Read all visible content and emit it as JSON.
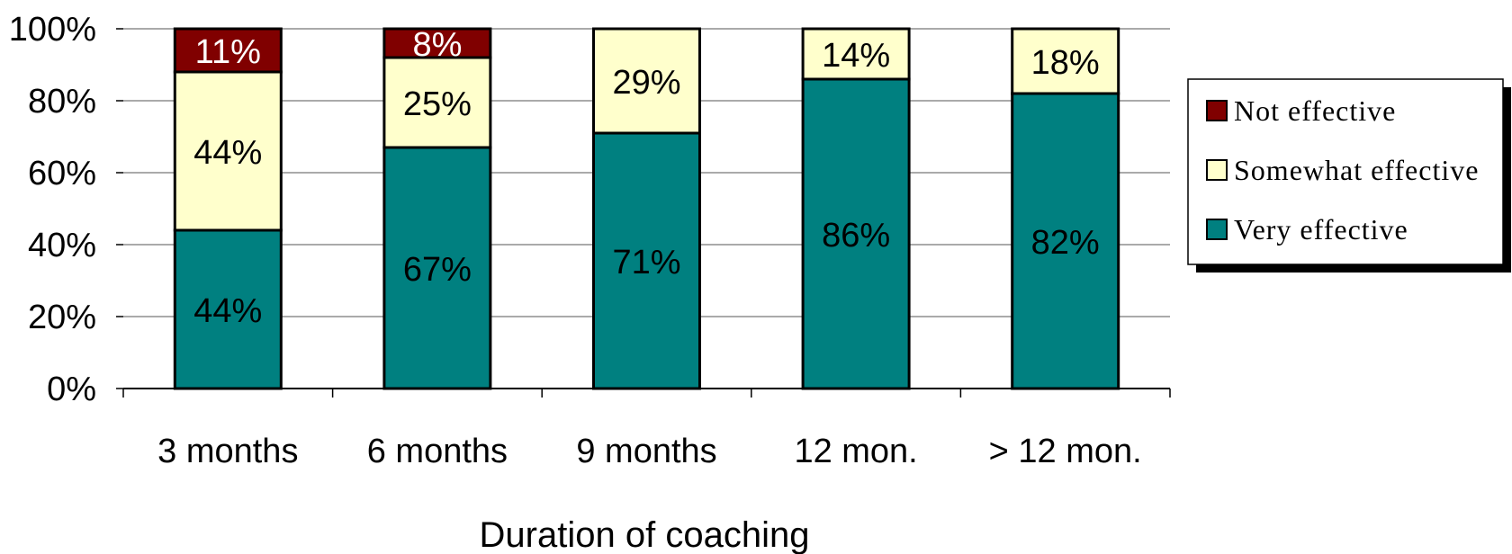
{
  "chart_data": {
    "type": "bar",
    "stacked": true,
    "normalized": true,
    "title": "",
    "xlabel": "Duration of coaching",
    "ylabel": "",
    "ylim": [
      0,
      100
    ],
    "yticks": [
      "0%",
      "20%",
      "40%",
      "60%",
      "80%",
      "100%"
    ],
    "ytick_values": [
      0,
      20,
      40,
      60,
      80,
      100
    ],
    "categories": [
      "3 months",
      "6 months",
      "9 months",
      "12 mon.",
      "> 12 mon."
    ],
    "series": [
      {
        "name": "Very effective",
        "color": "#008080",
        "label_color": "#000000",
        "values": [
          44,
          67,
          71,
          86,
          82
        ],
        "labels": [
          "44%",
          "67%",
          "71%",
          "86%",
          "82%"
        ]
      },
      {
        "name": "Somewhat effective",
        "color": "#FFFFCC",
        "label_color": "#000000",
        "values": [
          44,
          25,
          29,
          14,
          18
        ],
        "labels": [
          "44%",
          "25%",
          "29%",
          "14%",
          "18%"
        ]
      },
      {
        "name": "Not effective",
        "color": "#800000",
        "label_color": "#FFFFFF",
        "values": [
          11,
          8,
          0,
          0,
          0
        ],
        "labels": [
          "11%",
          "8%",
          "",
          "",
          ""
        ]
      }
    ],
    "legend_position": "right",
    "legend_order": [
      "Not effective",
      "Somewhat effective",
      "Very effective"
    ],
    "grid": true
  }
}
